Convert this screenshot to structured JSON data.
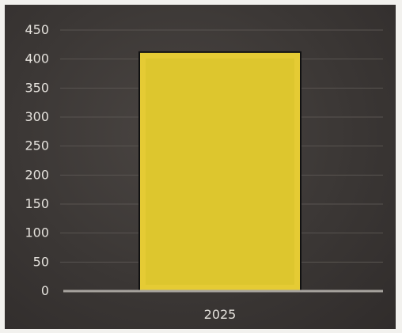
{
  "chart_data": {
    "type": "bar",
    "categories": [
      "2025"
    ],
    "values": [
      412
    ],
    "ylim": [
      0,
      450
    ],
    "yticks": [
      0,
      50,
      100,
      150,
      200,
      250,
      300,
      350,
      400,
      450
    ],
    "grid": true,
    "legend": "none",
    "title": "",
    "xlabel": "",
    "ylabel": "",
    "colors": {
      "bar_fill": "#e5cb34",
      "bar_inner": "#ddc62e",
      "bar_outline": "#111111",
      "background": "#3a3634",
      "grid": "#595451",
      "baseline": "#a7a39e",
      "text": "#e4e1dc"
    }
  }
}
